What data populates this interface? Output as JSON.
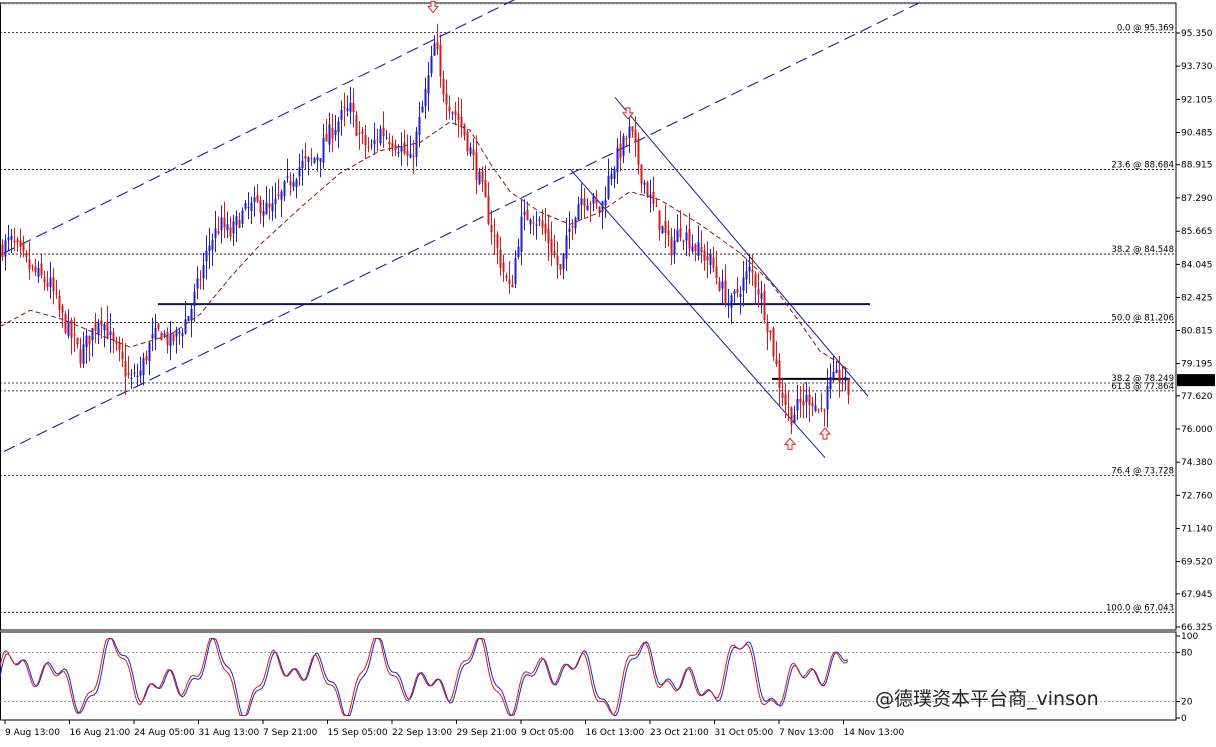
{
  "chart_data": [
    {
      "type": "candlestick",
      "panel": "price",
      "ylim": [
        66.325,
        96.9
      ],
      "y_ticks": [
        "95.350",
        "93.730",
        "92.105",
        "90.485",
        "88.915",
        "87.290",
        "85.665",
        "84.045",
        "82.425",
        "80.815",
        "79.195",
        "77.620",
        "76.000",
        "74.380",
        "72.760",
        "71.140",
        "69.520",
        "67.945",
        "66.325"
      ],
      "current_price": "78.388",
      "fib_levels": [
        {
          "label": "0.0 @ 95.369",
          "value": 95.369
        },
        {
          "label": "23.6 @ 88.684",
          "value": 88.684
        },
        {
          "label": "38.2 @ 84.548",
          "value": 84.548
        },
        {
          "label": "50.0 @ 81.206",
          "value": 81.206
        },
        {
          "label": "38.2 @ 78.249",
          "value": 78.249
        },
        {
          "label": "61.8 @ 77.864",
          "value": 77.864
        },
        {
          "label": "76.4 @ 73.728",
          "value": 73.728
        },
        {
          "label": "100.0 @ 67.043",
          "value": 67.043
        }
      ],
      "support_line": 82.1,
      "price_path": [
        [
          0,
          84.8
        ],
        [
          10,
          85.2
        ],
        [
          20,
          84.5
        ],
        [
          30,
          83.8
        ],
        [
          40,
          83.4
        ],
        [
          50,
          83.0
        ],
        [
          60,
          81.6
        ],
        [
          70,
          80.6
        ],
        [
          80,
          79.6
        ],
        [
          90,
          80.6
        ],
        [
          100,
          81.6
        ],
        [
          110,
          80.4
        ],
        [
          120,
          79.4
        ],
        [
          130,
          78.3
        ],
        [
          140,
          78.8
        ],
        [
          150,
          80.2
        ],
        [
          160,
          80.8
        ],
        [
          170,
          80.2
        ],
        [
          180,
          80.8
        ],
        [
          190,
          81.8
        ],
        [
          200,
          83.4
        ],
        [
          210,
          85.2
        ],
        [
          220,
          86.0
        ],
        [
          230,
          85.5
        ],
        [
          240,
          86.4
        ],
        [
          250,
          86.8
        ],
        [
          260,
          87.0
        ],
        [
          270,
          86.6
        ],
        [
          280,
          87.3
        ],
        [
          290,
          88.2
        ],
        [
          300,
          88.9
        ],
        [
          310,
          89.0
        ],
        [
          320,
          89.6
        ],
        [
          330,
          90.5
        ],
        [
          340,
          91.2
        ],
        [
          350,
          91.6
        ],
        [
          360,
          90.2
        ],
        [
          370,
          89.6
        ],
        [
          380,
          90.6
        ],
        [
          390,
          90.2
        ],
        [
          400,
          89.8
        ],
        [
          410,
          89.0
        ],
        [
          420,
          91.2
        ],
        [
          430,
          93.6
        ],
        [
          435,
          95.0
        ],
        [
          440,
          93.0
        ],
        [
          450,
          91.8
        ],
        [
          460,
          91.0
        ],
        [
          470,
          89.6
        ],
        [
          480,
          88.0
        ],
        [
          490,
          86.0
        ],
        [
          500,
          84.2
        ],
        [
          510,
          82.6
        ],
        [
          520,
          86.0
        ],
        [
          530,
          86.6
        ],
        [
          540,
          86.0
        ],
        [
          550,
          85.0
        ],
        [
          560,
          83.6
        ],
        [
          570,
          86.0
        ],
        [
          580,
          87.4
        ],
        [
          590,
          87.2
        ],
        [
          600,
          86.6
        ],
        [
          610,
          88.6
        ],
        [
          620,
          89.6
        ],
        [
          630,
          90.6
        ],
        [
          640,
          88.6
        ],
        [
          650,
          87.2
        ],
        [
          660,
          86.0
        ],
        [
          670,
          84.8
        ],
        [
          680,
          85.8
        ],
        [
          690,
          85.2
        ],
        [
          700,
          84.6
        ],
        [
          710,
          84.2
        ],
        [
          720,
          83.0
        ],
        [
          730,
          82.0
        ],
        [
          740,
          83.0
        ],
        [
          750,
          83.8
        ],
        [
          760,
          82.6
        ],
        [
          770,
          80.6
        ],
        [
          780,
          78.0
        ],
        [
          790,
          76.6
        ],
        [
          800,
          77.2
        ],
        [
          810,
          77.6
        ],
        [
          820,
          76.8
        ],
        [
          830,
          78.2
        ],
        [
          840,
          78.6
        ],
        [
          848,
          77.8
        ]
      ],
      "ma_path": [
        [
          0,
          81.0
        ],
        [
          30,
          81.8
        ],
        [
          60,
          81.4
        ],
        [
          100,
          80.6
        ],
        [
          130,
          80.0
        ],
        [
          170,
          80.6
        ],
        [
          200,
          81.6
        ],
        [
          230,
          83.4
        ],
        [
          260,
          85.0
        ],
        [
          300,
          86.8
        ],
        [
          340,
          88.5
        ],
        [
          380,
          89.6
        ],
        [
          420,
          90.0
        ],
        [
          450,
          91.0
        ],
        [
          470,
          90.6
        ],
        [
          490,
          89.0
        ],
        [
          510,
          87.6
        ],
        [
          540,
          86.6
        ],
        [
          570,
          86.0
        ],
        [
          600,
          86.6
        ],
        [
          630,
          87.6
        ],
        [
          660,
          87.2
        ],
        [
          700,
          86.0
        ],
        [
          740,
          84.6
        ],
        [
          770,
          83.2
        ],
        [
          800,
          81.2
        ],
        [
          820,
          79.8
        ],
        [
          840,
          79.2
        ],
        [
          848,
          78.9
        ]
      ],
      "arrows": [
        {
          "dir": "down",
          "x": 433,
          "price": 96.6
        },
        {
          "dir": "down",
          "x": 628,
          "price": 91.4
        },
        {
          "dir": "up",
          "x": 790,
          "price": 75.3
        },
        {
          "dir": "up",
          "x": 825,
          "price": 75.8
        }
      ]
    },
    {
      "type": "line",
      "panel": "stochastic",
      "ylim": [
        0,
        100
      ],
      "y_ticks": [
        "100",
        "80",
        "20",
        "0"
      ],
      "levels": [
        80,
        20
      ],
      "series": [
        {
          "color": "#1f1fd6",
          "phase": 0
        },
        {
          "color": "#d41c1c",
          "phase": 1
        }
      ]
    }
  ],
  "x_labels": [
    "9 Aug 13:00",
    "16 Aug 21:00",
    "24 Aug 05:00",
    "31 Aug 13:00",
    "7 Sep 21:00",
    "15 Sep 05:00",
    "22 Sep 13:00",
    "29 Sep 21:00",
    "9 Oct 05:00",
    "16 Oct 13:00",
    "23 Oct 21:00",
    "31 Oct 05:00",
    "7 Nov 13:00",
    "14 Nov 13:00"
  ],
  "watermark": "@德璞资本平台商_vinson",
  "colors": {
    "bull": "#1f1fd6",
    "bear": "#d41c1c",
    "channel": "#1a1aa8",
    "support": "#0b1160",
    "ma": "#8b1a1a"
  }
}
